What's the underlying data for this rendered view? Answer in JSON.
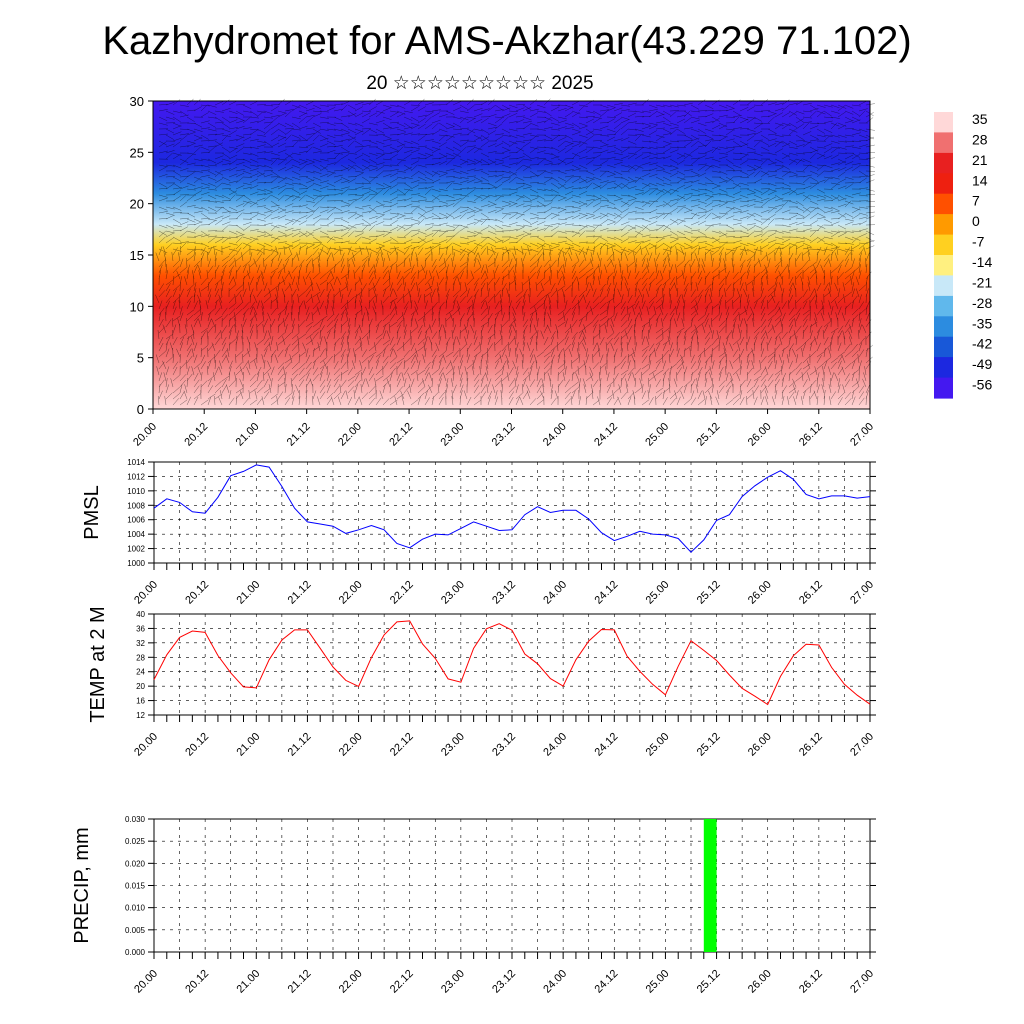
{
  "header": {
    "title": "Kazhydromet for AMS-Akzhar(43.229 71.102)",
    "subtitle": "20 ☆☆☆☆☆☆☆☆☆ 2025"
  },
  "colors": {
    "pmsl_line": "#0000ff",
    "temp_line": "#ff0000",
    "precip_bar": "#00ff00",
    "grid": "#000000",
    "colorbar": [
      "#ffd0d0",
      "#f06060",
      "#e01010",
      "#ff4000",
      "#ff8000",
      "#ffb000",
      "#ffe040",
      "#fff8a0",
      "#a8d8f0",
      "#40a8e8",
      "#1060d0",
      "#2020e0",
      "#6020ff",
      "#9040ff"
    ]
  },
  "chart_data": [
    {
      "id": "cross_section",
      "type": "heatmap",
      "description_series": "wind barbs over temperature shading (height vs time)",
      "title": "",
      "ylabel": "",
      "ylim": [
        0,
        30
      ],
      "yticks": [
        0,
        5,
        10,
        15,
        20,
        25,
        30
      ],
      "xticks": [
        "20.00",
        "20.12",
        "21.00",
        "21.12",
        "22.00",
        "22.12",
        "23.00",
        "23.12",
        "24.00",
        "24.12",
        "25.00",
        "25.12",
        "26.00",
        "26.12",
        "27.00"
      ],
      "colorbar_labels": [
        "35",
        "28",
        "21",
        "14",
        "7",
        "0",
        "-7",
        "-14",
        "-21",
        "-28",
        "-35",
        "-42",
        "-49",
        "-56"
      ],
      "levels": [
        {
          "height": 0,
          "value": 35
        },
        {
          "height": 5,
          "value": 28
        },
        {
          "height": 10,
          "value": 21
        },
        {
          "height": 13,
          "value": 7
        },
        {
          "height": 16,
          "value": -7
        },
        {
          "height": 18,
          "value": -21
        },
        {
          "height": 21,
          "value": -35
        },
        {
          "height": 24,
          "value": -49
        },
        {
          "height": 30,
          "value": -56
        }
      ]
    },
    {
      "id": "pmsl",
      "type": "line",
      "ylabel": "PMSL",
      "ylim": [
        1000,
        1014
      ],
      "yticks": [
        "1000",
        "1002",
        "1004",
        "1006",
        "1008",
        "1010",
        "1012",
        "1014"
      ],
      "xticks": [
        "20.00",
        "20.12",
        "21.00",
        "21.12",
        "22.00",
        "22.12",
        "23.00",
        "23.12",
        "24.00",
        "24.12",
        "25.00",
        "25.12",
        "26.00",
        "26.12",
        "27.00"
      ],
      "x_hours_step": 3,
      "values": [
        1007.6,
        1008.9,
        1008.4,
        1007.1,
        1006.9,
        1009.1,
        1012.1,
        1012.7,
        1013.6,
        1013.3,
        1010.6,
        1007.6,
        1005.7,
        1005.4,
        1005.1,
        1004.1,
        1004.6,
        1005.2,
        1004.6,
        1002.7,
        1002.1,
        1003.3,
        1004.0,
        1003.9,
        1004.8,
        1005.7,
        1005.1,
        1004.5,
        1004.6,
        1006.7,
        1007.8,
        1007.0,
        1007.3,
        1007.3,
        1006.1,
        1004.2,
        1003.1,
        1003.7,
        1004.4,
        1004.0,
        1003.9,
        1003.4,
        1001.5,
        1003.2,
        1005.9,
        1006.7,
        1009.2,
        1010.7,
        1011.9,
        1012.8,
        1011.6,
        1009.5,
        1008.9,
        1009.3,
        1009.3,
        1009.0,
        1009.2
      ]
    },
    {
      "id": "temp",
      "type": "line",
      "ylabel": "TEMP at 2 M",
      "ylim": [
        12,
        40
      ],
      "yticks": [
        "12",
        "16",
        "20",
        "24",
        "28",
        "32",
        "36",
        "40"
      ],
      "xticks": [
        "20.00",
        "20.12",
        "21.00",
        "21.12",
        "22.00",
        "22.12",
        "23.00",
        "23.12",
        "24.00",
        "24.12",
        "25.00",
        "25.12",
        "26.00",
        "26.12",
        "27.00"
      ],
      "x_hours_step": 3,
      "values": [
        21.8,
        28.7,
        33.5,
        35.3,
        34.9,
        28.5,
        23.7,
        19.8,
        19.5,
        27.3,
        32.8,
        35.6,
        35.6,
        30.5,
        25.3,
        21.6,
        19.9,
        27.9,
        34.2,
        37.8,
        38.1,
        31.7,
        27.7,
        22.0,
        21.1,
        30.5,
        35.9,
        37.3,
        35.5,
        28.9,
        26.2,
        22.1,
        20.0,
        27.3,
        32.5,
        35.7,
        35.6,
        28.3,
        24.1,
        20.5,
        17.6,
        25.5,
        32.6,
        29.9,
        27.1,
        23.1,
        19.4,
        17.2,
        14.9,
        22.7,
        28.4,
        31.6,
        31.4,
        25.2,
        20.5,
        17.5,
        15.0
      ]
    },
    {
      "id": "precip",
      "type": "bar",
      "ylabel": "PRECIP, mm",
      "ylim": [
        0,
        0.03
      ],
      "yticks": [
        "0.000",
        "0.005",
        "0.010",
        "0.015",
        "0.020",
        "0.025",
        "0.030"
      ],
      "xticks": [
        "20.00",
        "20.12",
        "21.00",
        "21.12",
        "22.00",
        "22.12",
        "23.00",
        "23.12",
        "24.00",
        "24.12",
        "25.00",
        "25.12",
        "26.00",
        "26.12",
        "27.00"
      ],
      "bars": [
        {
          "start_hour": 129,
          "end_hour": 132,
          "value": 0.03
        }
      ]
    }
  ]
}
